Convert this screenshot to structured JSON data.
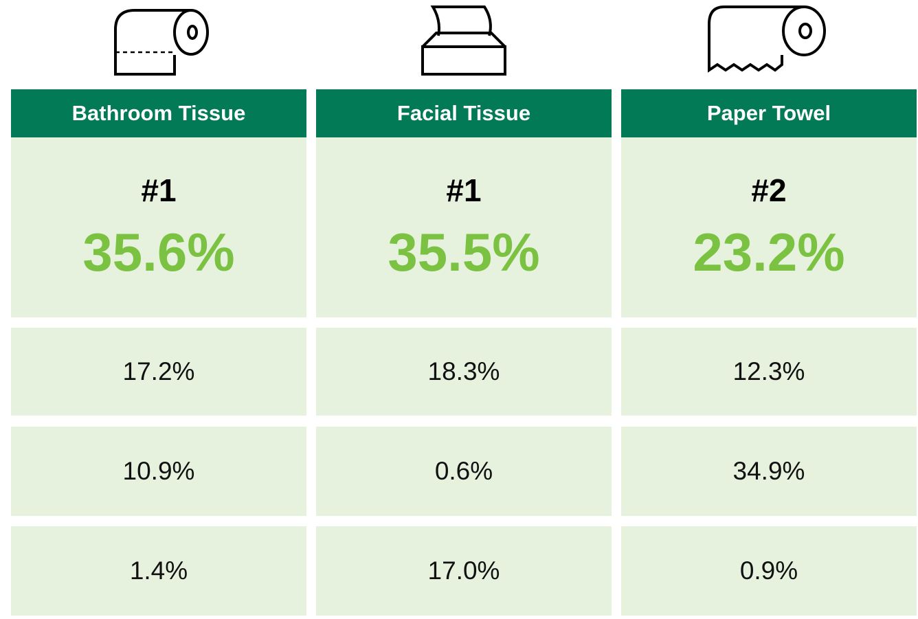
{
  "columns": [
    {
      "header": "Bathroom Tissue",
      "rank": "#1",
      "share": "35.6%",
      "rows": [
        "17.2%",
        "10.9%",
        "1.4%"
      ]
    },
    {
      "header": "Facial Tissue",
      "rank": "#1",
      "share": "35.5%",
      "rows": [
        "18.3%",
        "0.6%",
        "17.0%"
      ]
    },
    {
      "header": "Paper Towel",
      "rank": "#2",
      "share": "23.2%",
      "rows": [
        "12.3%",
        "34.9%",
        "0.9%"
      ]
    }
  ]
}
